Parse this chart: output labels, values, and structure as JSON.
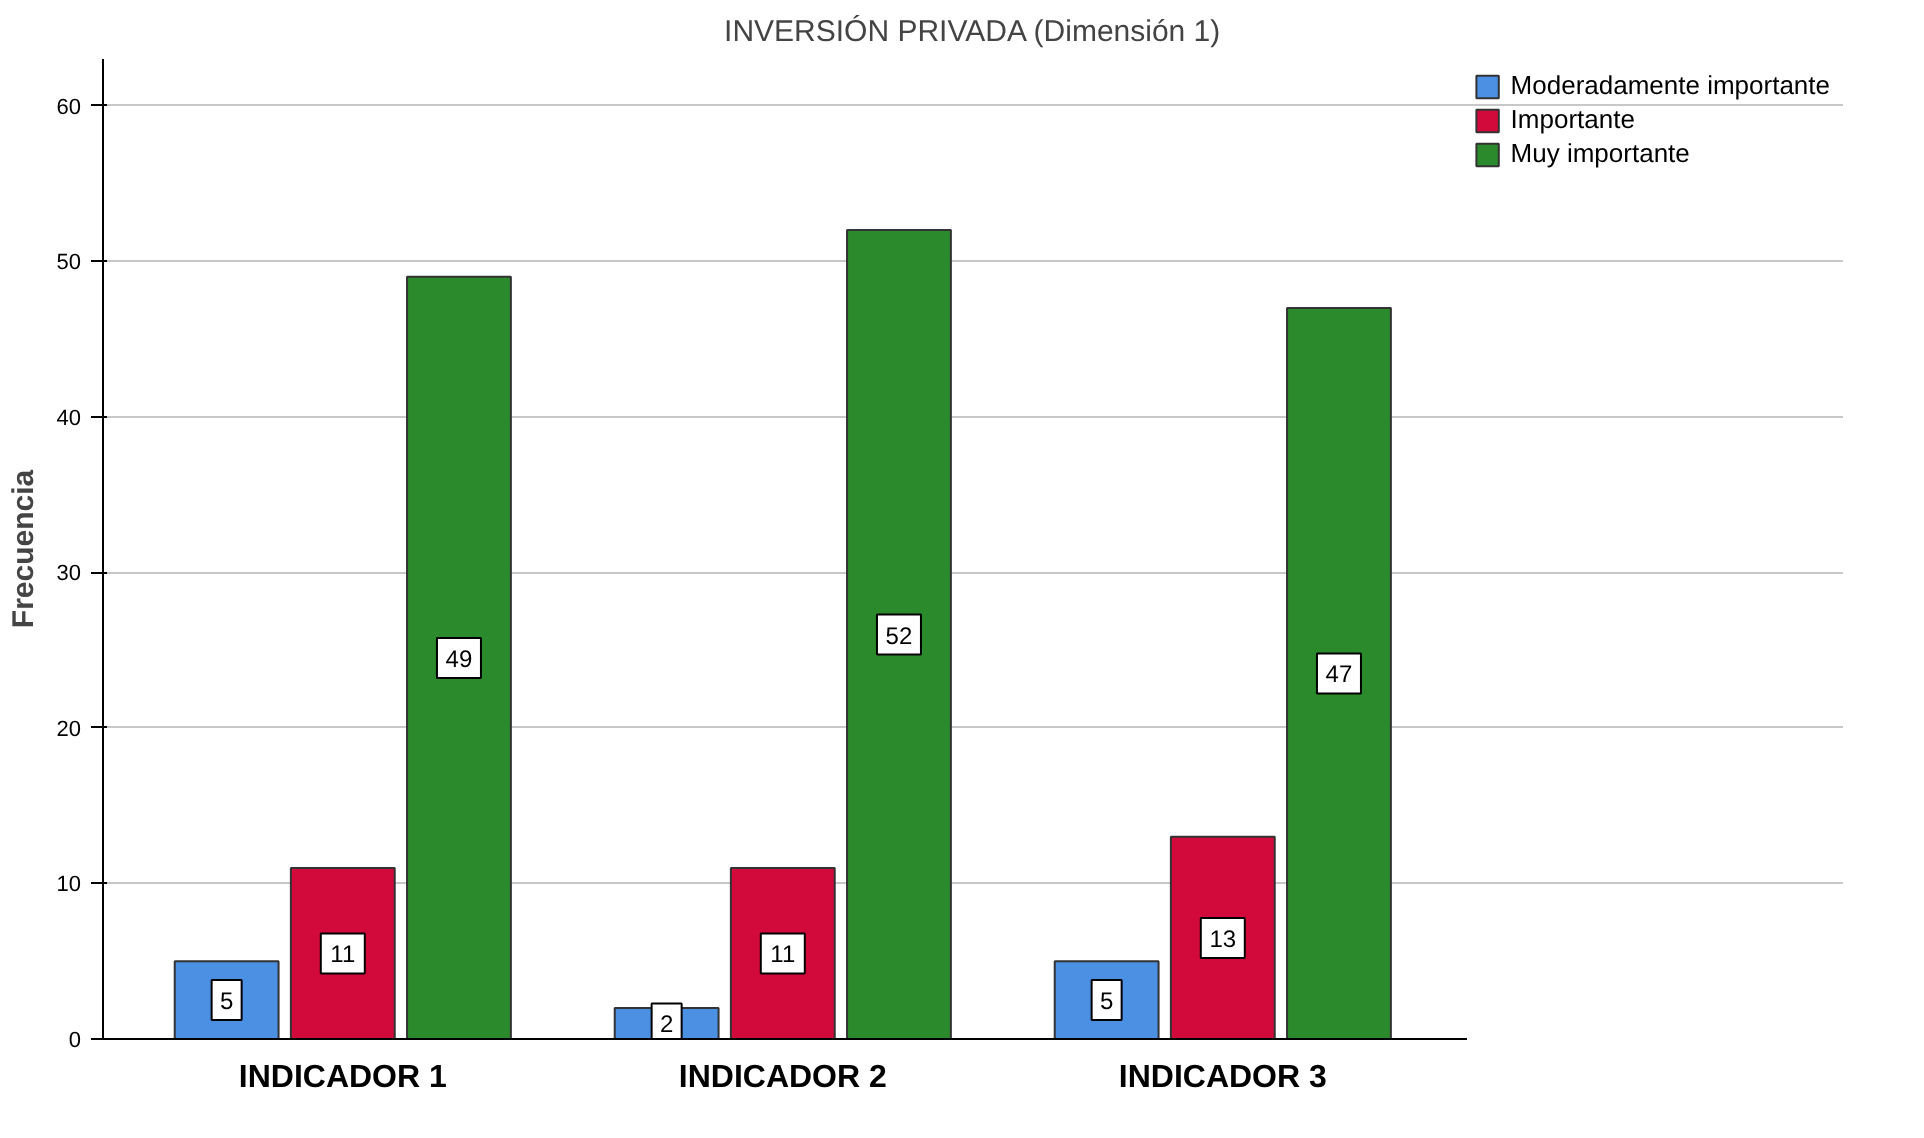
{
  "chart_data": {
    "type": "bar",
    "title": "INVERSIÓN PRIVADA (Dimensión 1)",
    "ylabel": "Frecuencia",
    "categories": [
      "INDICADOR 1",
      "INDICADOR 2",
      "INDICADOR 3"
    ],
    "series": [
      {
        "name": "Moderadamente importante",
        "color": "#4b90e2",
        "values": [
          5,
          2,
          5
        ]
      },
      {
        "name": "Importante",
        "color": "#d20a3c",
        "values": [
          11,
          11,
          13
        ]
      },
      {
        "name": "Muy importante",
        "color": "#2b8a2b",
        "values": [
          49,
          52,
          47
        ]
      }
    ],
    "ylim": [
      0,
      63
    ],
    "yticks": [
      0,
      10,
      20,
      30,
      40,
      50,
      60
    ],
    "grid": "y",
    "legend": "top right",
    "data_labels": true
  }
}
